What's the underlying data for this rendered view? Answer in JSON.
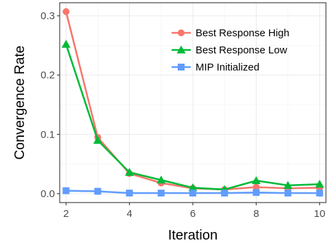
{
  "chart_data": {
    "type": "line",
    "title": "",
    "xlabel": "Iteration",
    "ylabel": "Convergence Rate",
    "x": [
      2,
      3,
      4,
      5,
      6,
      7,
      8,
      9,
      10
    ],
    "xlim": [
      1.8,
      10.2
    ],
    "ylim": [
      -0.015,
      0.322
    ],
    "x_ticks": [
      2,
      4,
      6,
      8,
      10
    ],
    "y_ticks": [
      0.0,
      0.1,
      0.2,
      0.3
    ],
    "x_tick_labels": [
      "2",
      "4",
      "6",
      "8",
      "10"
    ],
    "y_tick_labels": [
      "0.0",
      "0.1",
      "0.2",
      "0.3"
    ],
    "grid": true,
    "legend_position": "top-right",
    "series": [
      {
        "name": "Best Response High",
        "color": "#F8766D",
        "marker": "circle",
        "values": [
          0.307,
          0.095,
          0.034,
          0.018,
          0.009,
          0.007,
          0.011,
          0.009,
          0.01
        ]
      },
      {
        "name": "Best Response Low",
        "color": "#00BA38",
        "marker": "triangle",
        "values": [
          0.252,
          0.09,
          0.036,
          0.023,
          0.01,
          0.007,
          0.022,
          0.014,
          0.016
        ]
      },
      {
        "name": "MIP Initialized",
        "color": "#619CFF",
        "marker": "square",
        "values": [
          0.005,
          0.004,
          0.001,
          0.001,
          0.001,
          0.001,
          0.002,
          0.001,
          0.001
        ]
      }
    ]
  }
}
